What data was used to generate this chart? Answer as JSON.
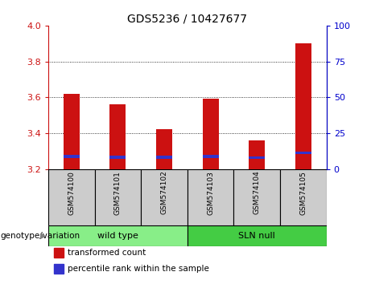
{
  "title": "GDS5236 / 10427677",
  "samples": [
    "GSM574100",
    "GSM574101",
    "GSM574102",
    "GSM574103",
    "GSM574104",
    "GSM574105"
  ],
  "transformed_counts": [
    3.62,
    3.56,
    3.42,
    3.59,
    3.36,
    3.9
  ],
  "baseline": 3.2,
  "ylim_left": [
    3.2,
    4.0
  ],
  "ylim_right": [
    0,
    100
  ],
  "yticks_left": [
    3.2,
    3.4,
    3.6,
    3.8,
    4.0
  ],
  "yticks_right": [
    0,
    25,
    50,
    75,
    100
  ],
  "bar_color_red": "#cc1111",
  "bar_color_blue": "#3333cc",
  "groups": [
    {
      "label": "wild type",
      "indices": [
        0,
        1,
        2
      ],
      "color": "#88ee88"
    },
    {
      "label": "SLN null",
      "indices": [
        3,
        4,
        5
      ],
      "color": "#44cc44"
    }
  ],
  "group_label": "genotype/variation",
  "legend_items": [
    {
      "label": "transformed count",
      "color": "#cc1111"
    },
    {
      "label": "percentile rank within the sample",
      "color": "#3333cc"
    }
  ],
  "left_tick_color": "#cc1111",
  "right_tick_color": "#0000cc",
  "bar_width": 0.35,
  "blue_bar_bottom": [
    3.262,
    3.256,
    3.256,
    3.262,
    3.254,
    3.282
  ],
  "blue_bar_height": 0.016,
  "sample_box_color": "#cccccc",
  "grid_ticks": [
    3.4,
    3.6,
    3.8
  ]
}
